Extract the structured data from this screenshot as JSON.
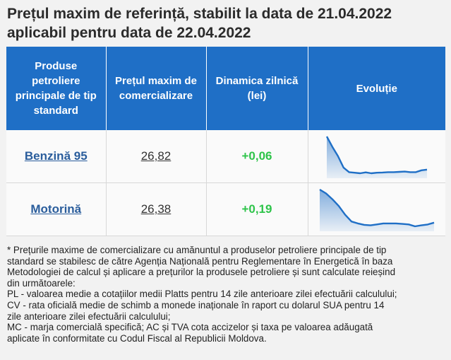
{
  "title": {
    "line1": "Prețul maxim de referință, stabilit la data de 21.04.2022",
    "line2": "aplicabil pentru data de 22.04.2022"
  },
  "table": {
    "headers": [
      "Produse petroliere principale de tip standard",
      "Prețul maxim de comercializare",
      "Dinamica zilnică (lei)",
      "Evoluție"
    ],
    "rows": [
      {
        "product": "Benzină 95",
        "price": "26,82",
        "delta": "+0,06",
        "trend": [
          29.7,
          28.8,
          28.0,
          27.0,
          26.6,
          26.55,
          26.5,
          26.58,
          26.5,
          26.55,
          26.57,
          26.6,
          26.6,
          26.62,
          26.65,
          26.6,
          26.6,
          26.76,
          26.82
        ]
      },
      {
        "product": "Motorină",
        "price": "26,38",
        "delta": "+0,19",
        "trend": [
          29.8,
          29.4,
          28.8,
          28.1,
          27.2,
          26.5,
          26.3,
          26.15,
          26.1,
          26.2,
          26.3,
          26.3,
          26.3,
          26.25,
          26.2,
          26.0,
          26.1,
          26.19,
          26.38
        ]
      }
    ],
    "spark_color": "#1f6fc6"
  },
  "footnote": {
    "lines": [
      "* Prețurile maxime de comercializare cu amănuntul a produselor petroliere principale de tip",
      "standard se stabilesc de către Agenția Națională pentru Reglementare în Energetică în baza",
      "Metodologiei de calcul și aplicare a prețurilor la produsele petroliere și sunt calculate reieșind",
      "din următoarele:",
      "PL - valoarea medie a cotațiilor medii Platts pentru 14 zile anterioare zilei efectuării calculului;",
      "CV - rata oficială medie de schimb a monede inaționale în raport cu dolarul SUA pentru 14",
      "zile anterioare zilei efectuării calculului;",
      "MC - marja comercială specifică; AC și TVA cota accizelor și taxa pe valoarea adăugată",
      "aplicate în conformitate cu Codul Fiscal al Republicii Moldova."
    ]
  }
}
